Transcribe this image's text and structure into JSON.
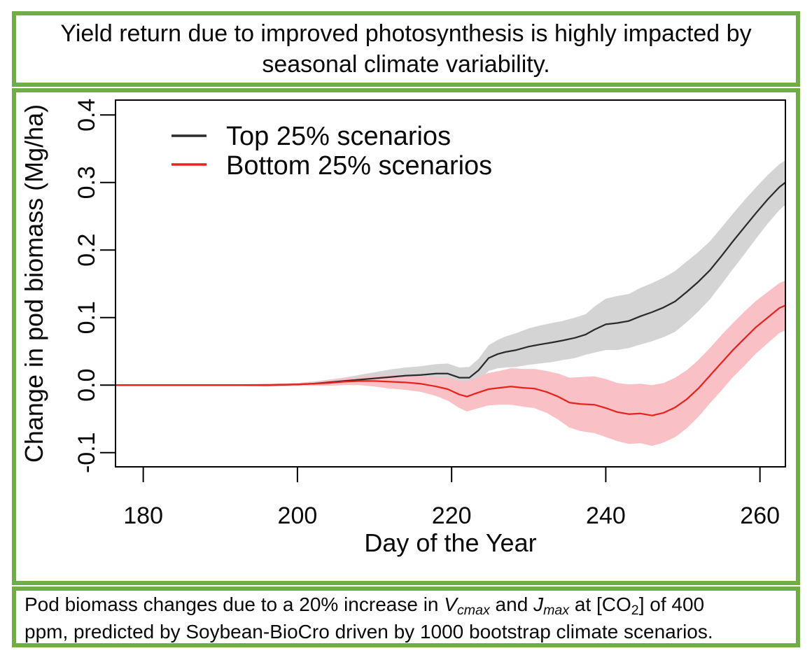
{
  "colors": {
    "frame_green": "#70ad47",
    "top_line": "#2b2b2b",
    "top_band": "#d4d4d4",
    "bottom_line": "#e8231d",
    "bottom_band": "#f9c0c5",
    "axis_black": "#000000"
  },
  "header": {
    "title_lines": [
      "Yield return due to improved photosynthesis is highly impacted by",
      "seasonal climate variability."
    ]
  },
  "chart_data": {
    "type": "line",
    "xlabel": "Day of the Year",
    "ylabel": "Change in pod biomass (Mg/ha)",
    "xlim": [
      176.4,
      263.3
    ],
    "ylim": [
      -0.121,
      0.422
    ],
    "x_ticks": [
      180,
      200,
      220,
      240,
      260
    ],
    "y_ticks": [
      -0.1,
      0.0,
      0.1,
      0.2,
      0.3,
      0.4
    ],
    "grid": false,
    "legend_position": "top-left",
    "series": [
      {
        "name": "Top 25% scenarios",
        "line_color": "#2b2b2b",
        "band_color": "#d4d4d4",
        "points_day_value_halfband": [
          [
            176.4,
            0.0,
            0.001
          ],
          [
            180,
            0.0,
            0.001
          ],
          [
            184,
            0.0,
            0.001
          ],
          [
            188,
            0.0,
            0.001
          ],
          [
            192,
            0.0,
            0.001
          ],
          [
            196,
            0.0,
            0.002
          ],
          [
            200,
            0.001,
            0.002
          ],
          [
            202,
            0.002,
            0.003
          ],
          [
            204,
            0.004,
            0.004
          ],
          [
            206,
            0.006,
            0.005
          ],
          [
            208,
            0.008,
            0.007
          ],
          [
            210,
            0.01,
            0.009
          ],
          [
            212,
            0.012,
            0.011
          ],
          [
            214,
            0.014,
            0.012
          ],
          [
            216,
            0.015,
            0.013
          ],
          [
            218,
            0.017,
            0.014
          ],
          [
            219.5,
            0.017,
            0.015
          ],
          [
            221,
            0.011,
            0.015
          ],
          [
            222.3,
            0.011,
            0.016
          ],
          [
            223.5,
            0.022,
            0.017
          ],
          [
            224.8,
            0.04,
            0.019
          ],
          [
            226,
            0.046,
            0.021
          ],
          [
            227,
            0.049,
            0.023
          ],
          [
            228.4,
            0.052,
            0.025
          ],
          [
            230,
            0.057,
            0.027
          ],
          [
            231.4,
            0.06,
            0.028
          ],
          [
            233,
            0.063,
            0.029
          ],
          [
            234.4,
            0.066,
            0.029
          ],
          [
            236,
            0.07,
            0.03
          ],
          [
            237.4,
            0.075,
            0.03
          ],
          [
            238.5,
            0.082,
            0.034
          ],
          [
            240,
            0.09,
            0.038
          ],
          [
            241.5,
            0.092,
            0.04
          ],
          [
            243,
            0.095,
            0.04
          ],
          [
            244.5,
            0.102,
            0.042
          ],
          [
            246,
            0.108,
            0.043
          ],
          [
            247.5,
            0.115,
            0.044
          ],
          [
            249,
            0.124,
            0.045
          ],
          [
            250.5,
            0.138,
            0.045
          ],
          [
            252,
            0.153,
            0.044
          ],
          [
            253.5,
            0.17,
            0.043
          ],
          [
            255,
            0.191,
            0.042
          ],
          [
            256.5,
            0.213,
            0.041
          ],
          [
            258,
            0.234,
            0.04
          ],
          [
            259.5,
            0.255,
            0.038
          ],
          [
            261,
            0.275,
            0.036
          ],
          [
            262.5,
            0.293,
            0.034
          ],
          [
            263.3,
            0.3,
            0.033
          ]
        ]
      },
      {
        "name": "Bottom 25% scenarios",
        "line_color": "#e8231d",
        "band_color": "#f9c0c5",
        "points_day_value_halfband": [
          [
            176.4,
            0.0,
            0.001
          ],
          [
            180,
            0.0,
            0.001
          ],
          [
            184,
            0.0,
            0.001
          ],
          [
            188,
            0.0,
            0.001
          ],
          [
            192,
            0.0,
            0.001
          ],
          [
            196,
            0.0,
            0.002
          ],
          [
            200,
            0.001,
            0.002
          ],
          [
            202,
            0.002,
            0.003
          ],
          [
            204,
            0.003,
            0.004
          ],
          [
            206,
            0.005,
            0.005
          ],
          [
            208,
            0.006,
            0.006
          ],
          [
            210,
            0.006,
            0.008
          ],
          [
            212,
            0.005,
            0.01
          ],
          [
            214,
            0.004,
            0.011
          ],
          [
            216,
            0.002,
            0.012
          ],
          [
            218,
            -0.002,
            0.014
          ],
          [
            219.5,
            -0.006,
            0.017
          ],
          [
            221,
            -0.014,
            0.02
          ],
          [
            222,
            -0.017,
            0.022
          ],
          [
            223.2,
            -0.012,
            0.023
          ],
          [
            224.8,
            -0.006,
            0.024
          ],
          [
            226.2,
            -0.004,
            0.025
          ],
          [
            227.7,
            -0.002,
            0.027
          ],
          [
            229.3,
            -0.004,
            0.028
          ],
          [
            230.7,
            -0.005,
            0.029
          ],
          [
            232.3,
            -0.01,
            0.031
          ],
          [
            233.8,
            -0.017,
            0.034
          ],
          [
            235.3,
            -0.026,
            0.037
          ],
          [
            236.7,
            -0.028,
            0.04
          ],
          [
            238.5,
            -0.029,
            0.042
          ],
          [
            240,
            -0.034,
            0.043
          ],
          [
            241.5,
            -0.04,
            0.043
          ],
          [
            243,
            -0.043,
            0.044
          ],
          [
            244.5,
            -0.042,
            0.044
          ],
          [
            246,
            -0.045,
            0.045
          ],
          [
            247.5,
            -0.041,
            0.044
          ],
          [
            249,
            -0.033,
            0.044
          ],
          [
            250.5,
            -0.021,
            0.043
          ],
          [
            252,
            -0.005,
            0.042
          ],
          [
            253.5,
            0.014,
            0.041
          ],
          [
            255,
            0.033,
            0.041
          ],
          [
            256.5,
            0.052,
            0.04
          ],
          [
            258,
            0.069,
            0.04
          ],
          [
            259.5,
            0.086,
            0.039
          ],
          [
            261,
            0.1,
            0.038
          ],
          [
            262.5,
            0.114,
            0.037
          ],
          [
            263.3,
            0.118,
            0.037
          ]
        ]
      }
    ]
  },
  "caption": {
    "lines": [
      [
        {
          "t": "Pod biomass changes due to a 20% increase in "
        },
        {
          "t": "V",
          "style": "italic"
        },
        {
          "t": "cmax",
          "style": "italic-sub"
        },
        {
          "t": " and "
        },
        {
          "t": "J",
          "style": "italic"
        },
        {
          "t": "max",
          "style": "italic-sub"
        },
        {
          "t": " at [CO"
        },
        {
          "t": "2",
          "style": "sub"
        },
        {
          "t": "] of 400"
        }
      ],
      [
        {
          "t": "ppm, predicted by Soybean-BioCro driven by 1000 bootstrap climate scenarios."
        }
      ]
    ]
  }
}
